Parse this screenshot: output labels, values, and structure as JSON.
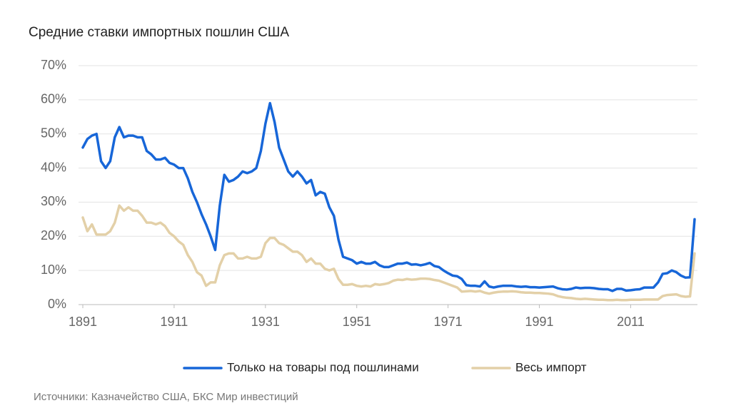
{
  "chart_data": {
    "type": "line",
    "title": "Средние ставки импортных пошлин США",
    "source": "Источники: Казначейство США, БКС Мир инвестиций",
    "x": [
      1891,
      1892,
      1893,
      1894,
      1895,
      1896,
      1897,
      1898,
      1899,
      1900,
      1901,
      1902,
      1903,
      1904,
      1905,
      1906,
      1907,
      1908,
      1909,
      1910,
      1911,
      1912,
      1913,
      1914,
      1915,
      1916,
      1917,
      1918,
      1919,
      1920,
      1921,
      1922,
      1923,
      1924,
      1925,
      1926,
      1927,
      1928,
      1929,
      1930,
      1931,
      1932,
      1933,
      1934,
      1935,
      1936,
      1937,
      1938,
      1939,
      1940,
      1941,
      1942,
      1943,
      1944,
      1945,
      1946,
      1947,
      1948,
      1949,
      1950,
      1951,
      1952,
      1953,
      1954,
      1955,
      1956,
      1957,
      1958,
      1959,
      1960,
      1961,
      1962,
      1963,
      1964,
      1965,
      1966,
      1967,
      1968,
      1969,
      1970,
      1971,
      1972,
      1973,
      1974,
      1975,
      1976,
      1977,
      1978,
      1979,
      1980,
      1981,
      1982,
      1983,
      1984,
      1985,
      1986,
      1987,
      1988,
      1989,
      1990,
      1991,
      1992,
      1993,
      1994,
      1995,
      1996,
      1997,
      1998,
      1999,
      2000,
      2001,
      2002,
      2003,
      2004,
      2005,
      2006,
      2007,
      2008,
      2009,
      2010,
      2011,
      2012,
      2013,
      2014,
      2015,
      2016,
      2017,
      2018,
      2019,
      2020,
      2021,
      2022,
      2023,
      2024,
      2025
    ],
    "series": [
      {
        "name": "Только на товары под пошлинами",
        "color": "#1766d8",
        "values": [
          46,
          48.5,
          49.5,
          50,
          42,
          40,
          42,
          49,
          52,
          49,
          49.5,
          49.5,
          49,
          49,
          45,
          44,
          42.5,
          42.5,
          43,
          41.5,
          41,
          40,
          40,
          37,
          33,
          30,
          26.5,
          23.5,
          20,
          16,
          29,
          38,
          36,
          36.5,
          37.5,
          39,
          38.5,
          39,
          40,
          45,
          53,
          59,
          53.5,
          46,
          42.5,
          39,
          37.5,
          39,
          37.5,
          35.5,
          36.5,
          32,
          33,
          32.5,
          28.5,
          26,
          19,
          14,
          13.5,
          13,
          12,
          12.5,
          12,
          12,
          12.5,
          11.5,
          11,
          11,
          11.5,
          12,
          12,
          12.3,
          11.7,
          11.8,
          11.5,
          11.8,
          12.2,
          11.3,
          11,
          10,
          9.2,
          8.5,
          8.3,
          7.5,
          5.7,
          5.5,
          5.5,
          5.3,
          6.8,
          5.3,
          5,
          5.3,
          5.5,
          5.5,
          5.5,
          5.3,
          5.2,
          5.3,
          5.1,
          5.1,
          5,
          5.1,
          5.2,
          5.3,
          4.8,
          4.5,
          4.4,
          4.6,
          5,
          4.8,
          4.9,
          4.9,
          4.8,
          4.6,
          4.5,
          4.5,
          4,
          4.6,
          4.6,
          4.1,
          4.2,
          4.4,
          4.5,
          5,
          5,
          5,
          6.5,
          9,
          9.2,
          10,
          9.5,
          8.5,
          7.9,
          8,
          25
        ]
      },
      {
        "name": "Весь импорт",
        "color": "#e3d0a8",
        "values": [
          25.5,
          21.5,
          23.5,
          20.5,
          20.5,
          20.5,
          21.5,
          24,
          29,
          27.5,
          28.5,
          27.5,
          27.5,
          26,
          24,
          24,
          23.5,
          24,
          23,
          21,
          20,
          18.5,
          17.5,
          14.5,
          12.5,
          9.5,
          8.5,
          5.5,
          6.5,
          6.5,
          11.5,
          14.5,
          15,
          15,
          13.5,
          13.5,
          14,
          13.5,
          13.5,
          14,
          18,
          19.5,
          19.5,
          18,
          17.5,
          16.5,
          15.5,
          15.5,
          14.5,
          12.5,
          13.5,
          12,
          12,
          10.5,
          10,
          10.5,
          7.5,
          5.8,
          5.8,
          6,
          5.5,
          5.3,
          5.5,
          5.3,
          6,
          5.8,
          6,
          6.3,
          7,
          7.3,
          7.2,
          7.5,
          7.3,
          7.4,
          7.6,
          7.6,
          7.5,
          7.2,
          7,
          6.5,
          6,
          5.5,
          5,
          3.8,
          3.9,
          4,
          3.8,
          4,
          3.5,
          3.2,
          3.5,
          3.7,
          3.8,
          3.8,
          3.9,
          3.8,
          3.6,
          3.5,
          3.5,
          3.4,
          3.4,
          3.3,
          3.2,
          3,
          2.5,
          2.2,
          2,
          1.9,
          1.7,
          1.6,
          1.7,
          1.6,
          1.5,
          1.4,
          1.4,
          1.3,
          1.3,
          1.4,
          1.3,
          1.3,
          1.4,
          1.4,
          1.4,
          1.5,
          1.5,
          1.5,
          1.5,
          2.5,
          2.8,
          2.9,
          3,
          2.5,
          2.3,
          2.4,
          15
        ]
      }
    ],
    "xlim": [
      1891,
      2025
    ],
    "xticks": [
      1891,
      1911,
      1931,
      1951,
      1971,
      1991,
      2011
    ],
    "ylim": [
      0,
      70
    ],
    "yticks": [
      {
        "value": 0,
        "label": "0%"
      },
      {
        "value": 10,
        "label": "10%"
      },
      {
        "value": 20,
        "label": "20%"
      },
      {
        "value": 30,
        "label": "30%"
      },
      {
        "value": 40,
        "label": "40%"
      },
      {
        "value": 50,
        "label": "50%"
      },
      {
        "value": 60,
        "label": "60%"
      },
      {
        "value": 70,
        "label": "70%"
      }
    ],
    "grid": true,
    "legend": "bottom"
  }
}
